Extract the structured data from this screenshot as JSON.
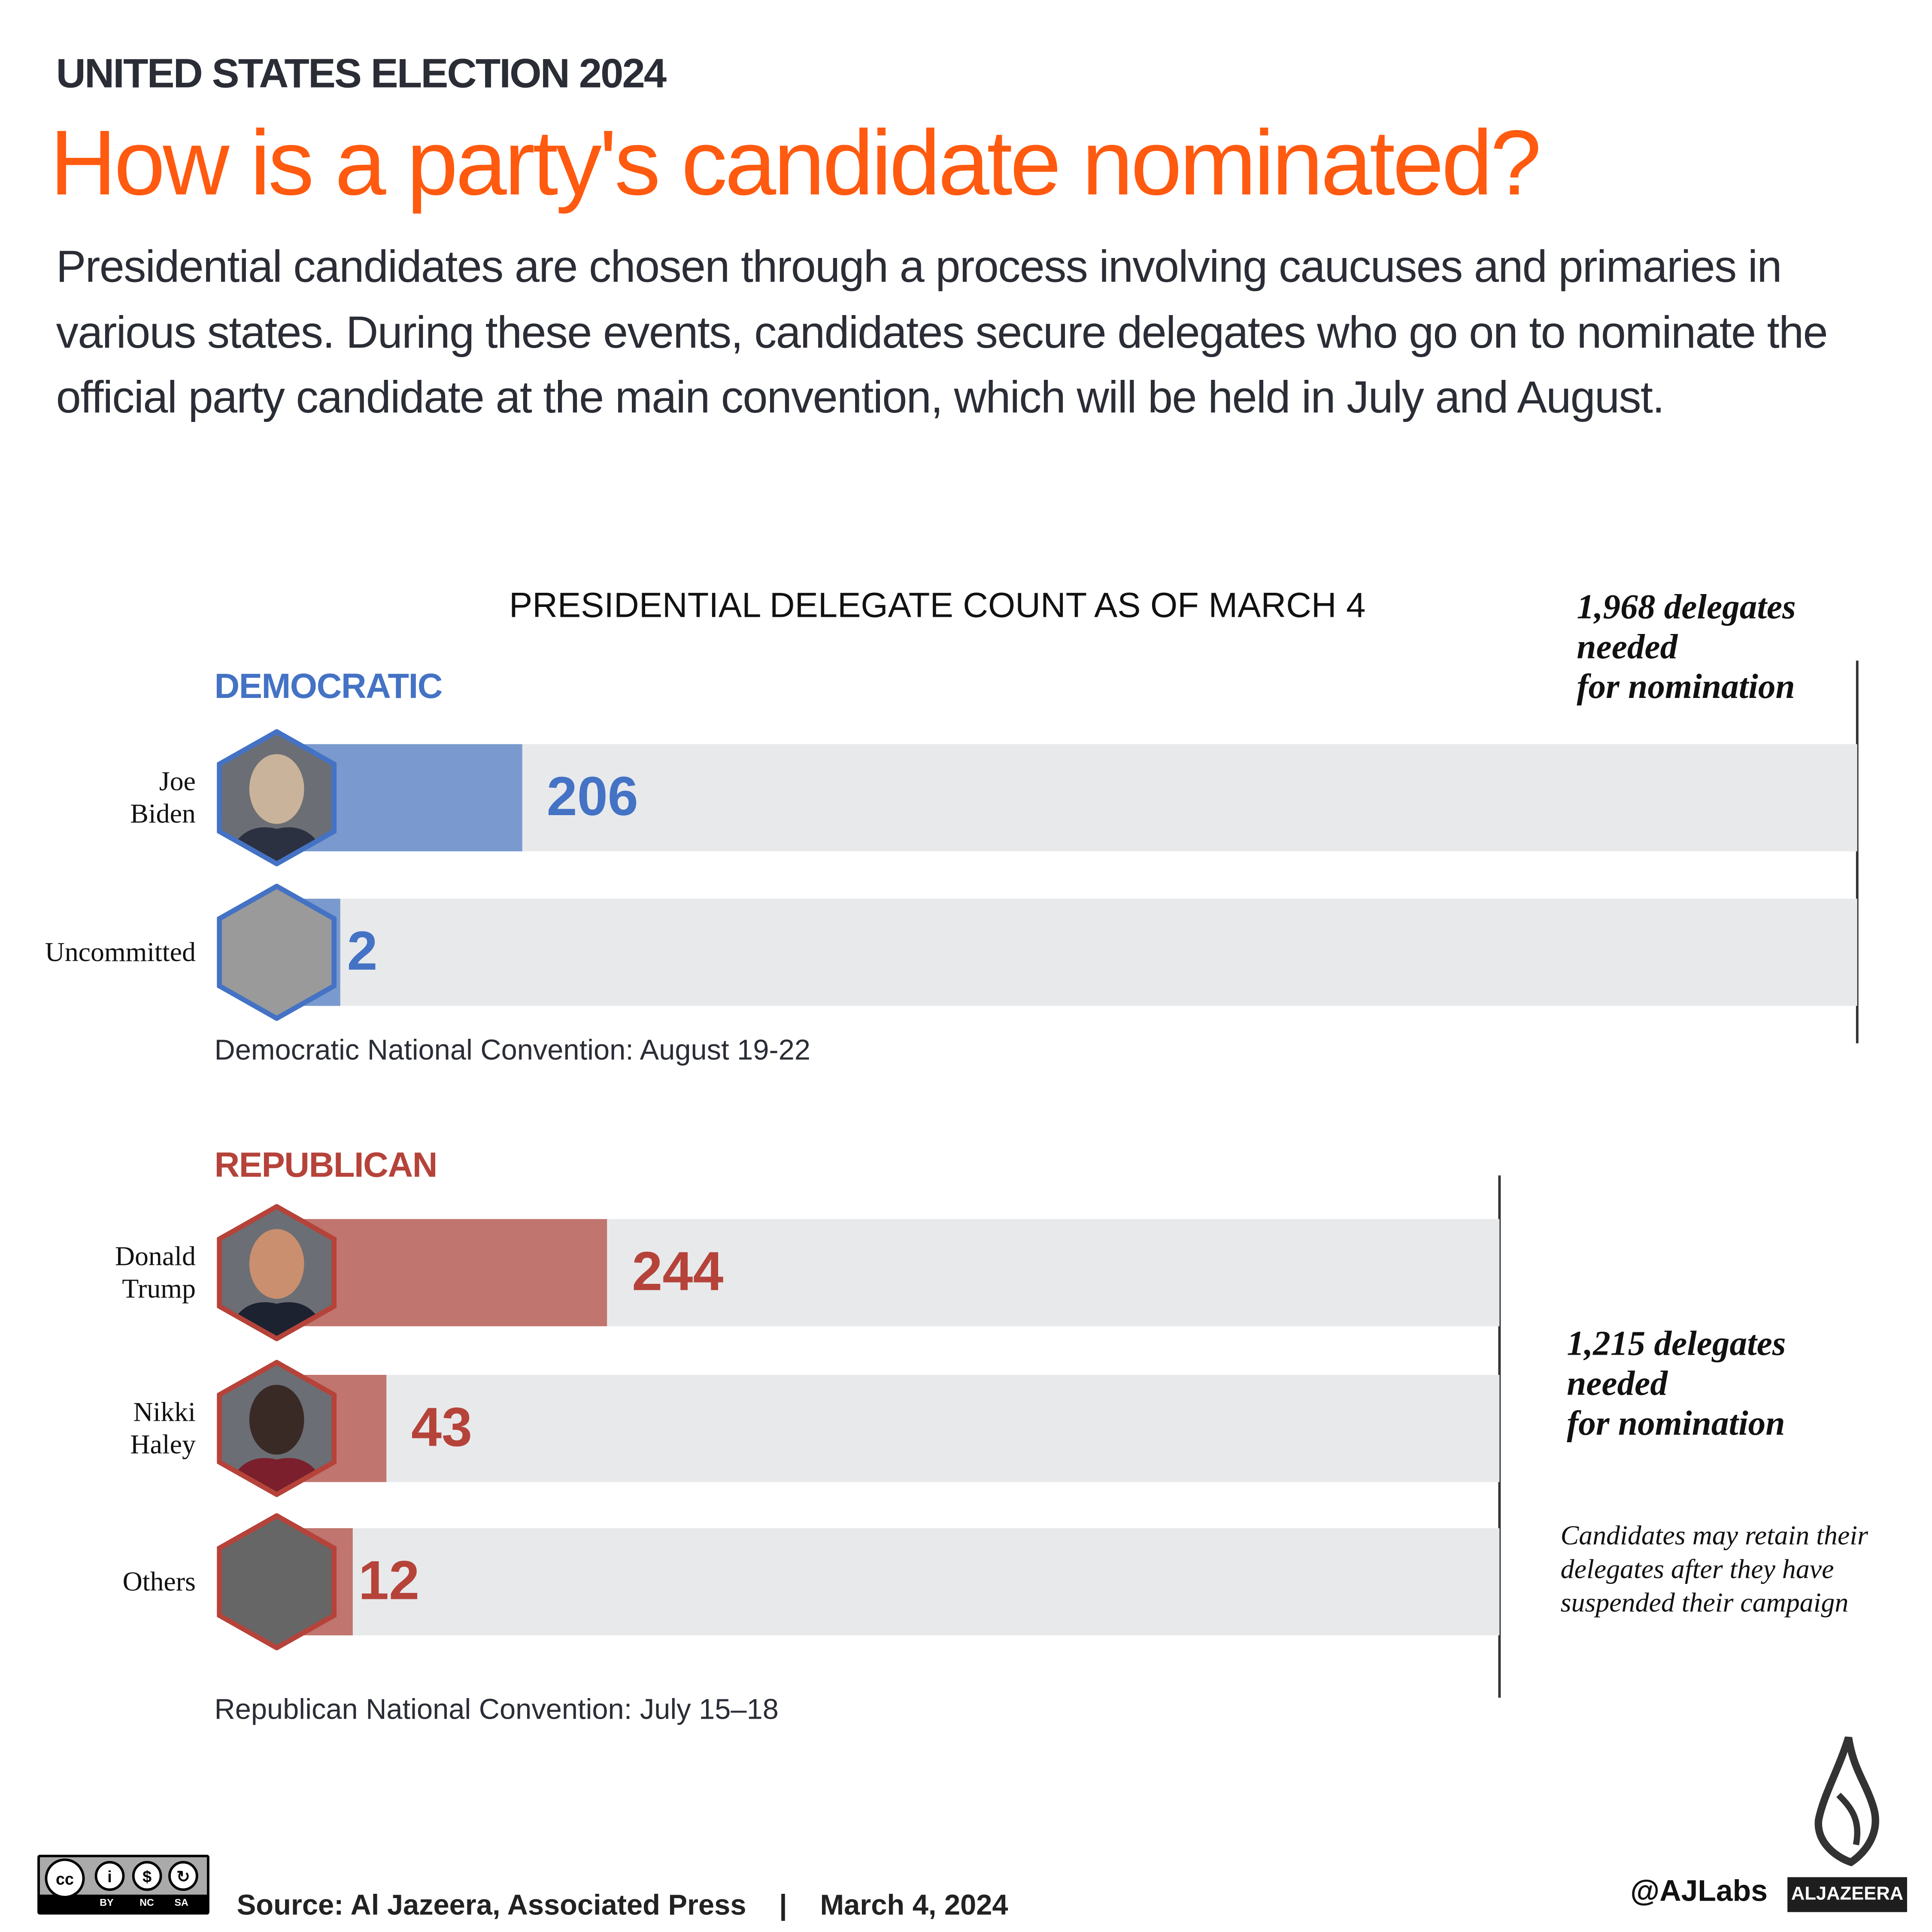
{
  "kicker": "UNITED STATES ELECTION 2024",
  "title": "How is a party's candidate nominated?",
  "intro": "Presidential candidates are chosen through a process involving caucuses and primaries in various states. During these events, candidates secure delegates who go on to nominate the official party candidate at the main convention, which will be held in July and August.",
  "chart_data": {
    "type": "bar",
    "orientation": "horizontal",
    "title": "PRESIDENTIAL DELEGATE COUNT AS OF MARCH 4",
    "groups": [
      {
        "party": "DEMOCRATIC",
        "color": "#4472c4",
        "fill_color": "#7a9acf",
        "needed": 1968,
        "needed_label": [
          "1,968 delegates",
          "needed",
          "for nomination"
        ],
        "convention": "Democratic National Convention: August 19-22",
        "categories": [
          "Joe Biden",
          "Uncommitted"
        ],
        "name_lines": [
          [
            "Joe",
            "Biden"
          ],
          [
            "Uncommitted"
          ]
        ],
        "values": [
          206,
          2
        ],
        "value_labels": [
          "206",
          "2"
        ]
      },
      {
        "party": "REPUBLICAN",
        "color": "#b5433a",
        "fill_color": "#c0756e",
        "needed": 1215,
        "needed_label": [
          "1,215 delegates",
          "needed",
          "for nomination"
        ],
        "note": "Candidates may retain their delegates after they have suspended their campaign",
        "convention": "Republican National Convention: July 15–18",
        "categories": [
          "Donald Trump",
          "Nikki Haley",
          "Others"
        ],
        "name_lines": [
          [
            "Donald",
            "Trump"
          ],
          [
            "Nikki",
            "Haley"
          ],
          [
            "Others"
          ]
        ],
        "values": [
          244,
          43,
          12
        ],
        "value_labels": [
          "244",
          "43",
          "12"
        ]
      }
    ]
  },
  "footer": {
    "license": "CC BY NC SA",
    "license_labels": [
      "BY",
      "NC",
      "SA"
    ],
    "source": "Source: Al Jazeera, Associated Press",
    "separator": "|",
    "date": "March 4, 2024",
    "handle": "@AJLabs",
    "brand": "ALJAZEERA"
  }
}
